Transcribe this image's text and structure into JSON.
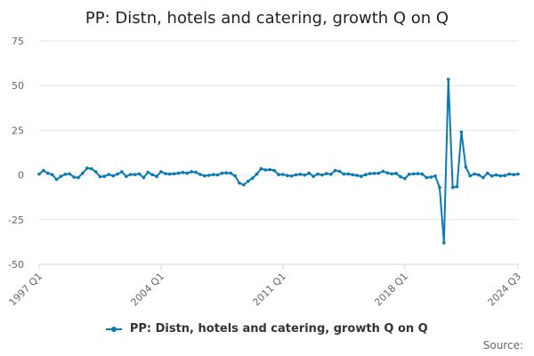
{
  "chart_data": {
    "type": "line",
    "title": "PP: Distn, hotels and catering, growth Q on Q",
    "series_name": "PP: Distn, hotels and catering, growth Q on Q",
    "source_label": "Source:",
    "color": "#0a7ab4",
    "ylim": [
      -50,
      75
    ],
    "y_ticks": [
      -50,
      -25,
      0,
      25,
      50,
      75
    ],
    "y_tick_labels": [
      "-50",
      "-25",
      "0",
      "25",
      "50",
      "75"
    ],
    "x_ticks": [
      "1997 Q1",
      "2004 Q1",
      "2011 Q1",
      "2018 Q1",
      "2024 Q3"
    ],
    "grid": true,
    "legend_position": "bottom",
    "x": [
      "1997 Q1",
      "1997 Q2",
      "1997 Q3",
      "1997 Q4",
      "1998 Q1",
      "1998 Q2",
      "1998 Q3",
      "1998 Q4",
      "1999 Q1",
      "1999 Q2",
      "1999 Q3",
      "1999 Q4",
      "2000 Q1",
      "2000 Q2",
      "2000 Q3",
      "2000 Q4",
      "2001 Q1",
      "2001 Q2",
      "2001 Q3",
      "2001 Q4",
      "2002 Q1",
      "2002 Q2",
      "2002 Q3",
      "2002 Q4",
      "2003 Q1",
      "2003 Q2",
      "2003 Q3",
      "2003 Q4",
      "2004 Q1",
      "2004 Q2",
      "2004 Q3",
      "2004 Q4",
      "2005 Q1",
      "2005 Q2",
      "2005 Q3",
      "2005 Q4",
      "2006 Q1",
      "2006 Q2",
      "2006 Q3",
      "2006 Q4",
      "2007 Q1",
      "2007 Q2",
      "2007 Q3",
      "2007 Q4",
      "2008 Q1",
      "2008 Q2",
      "2008 Q3",
      "2008 Q4",
      "2009 Q1",
      "2009 Q2",
      "2009 Q3",
      "2009 Q4",
      "2010 Q1",
      "2010 Q2",
      "2010 Q3",
      "2010 Q4",
      "2011 Q1",
      "2011 Q2",
      "2011 Q3",
      "2011 Q4",
      "2012 Q1",
      "2012 Q2",
      "2012 Q3",
      "2012 Q4",
      "2013 Q1",
      "2013 Q2",
      "2013 Q3",
      "2013 Q4",
      "2014 Q1",
      "2014 Q2",
      "2014 Q3",
      "2014 Q4",
      "2015 Q1",
      "2015 Q2",
      "2015 Q3",
      "2015 Q4",
      "2016 Q1",
      "2016 Q2",
      "2016 Q3",
      "2016 Q4",
      "2017 Q1",
      "2017 Q2",
      "2017 Q3",
      "2017 Q4",
      "2018 Q1",
      "2018 Q2",
      "2018 Q3",
      "2018 Q4",
      "2019 Q1",
      "2019 Q2",
      "2019 Q3",
      "2019 Q4",
      "2020 Q1",
      "2020 Q2",
      "2020 Q3",
      "2020 Q4",
      "2021 Q1",
      "2021 Q2",
      "2021 Q3",
      "2021 Q4",
      "2022 Q1",
      "2022 Q2",
      "2022 Q3",
      "2022 Q4",
      "2023 Q1",
      "2023 Q2",
      "2023 Q3",
      "2023 Q4",
      "2024 Q1",
      "2024 Q2",
      "2024 Q3"
    ],
    "values": [
      0.5,
      2.5,
      1.0,
      0.2,
      -2.5,
      -0.8,
      0.4,
      0.6,
      -1.2,
      -1.5,
      1.0,
      3.8,
      3.5,
      1.8,
      -1.0,
      -0.8,
      0.3,
      -0.5,
      0.5,
      1.8,
      -0.8,
      0.3,
      0.2,
      0.6,
      -1.5,
      1.5,
      0.2,
      -0.8,
      1.8,
      0.8,
      0.5,
      0.7,
      1.0,
      1.4,
      1.0,
      1.8,
      1.5,
      0.3,
      -0.5,
      -0.2,
      0.2,
      0.0,
      1.0,
      1.2,
      1.0,
      -0.5,
      -4.5,
      -5.5,
      -3.5,
      -1.8,
      0.5,
      3.5,
      2.8,
      3.0,
      2.5,
      0.2,
      0.3,
      -0.3,
      -0.6,
      0.1,
      0.4,
      -0.1,
      1.0,
      -0.8,
      0.5,
      0.0,
      0.8,
      0.4,
      2.5,
      2.0,
      0.5,
      0.6,
      0.1,
      -0.2,
      -0.8,
      0.2,
      0.8,
      0.9,
      1.0,
      2.0,
      1.2,
      0.6,
      0.9,
      -1.0,
      -2.0,
      0.4,
      0.6,
      0.8,
      0.5,
      -1.5,
      -1.2,
      -0.6,
      -7.0,
      -38.0,
      53.5,
      -7.0,
      -6.5,
      24.0,
      4.5,
      -0.5,
      0.5,
      0.0,
      -1.5,
      1.0,
      -0.6,
      0.0,
      -0.5,
      -0.3,
      0.5,
      0.2,
      0.5
    ]
  }
}
